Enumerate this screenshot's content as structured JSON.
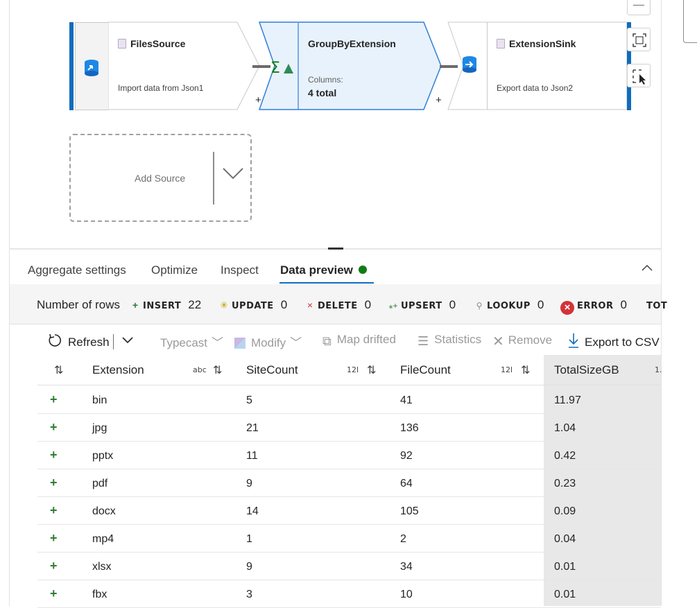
{
  "pipeline": {
    "nodes": [
      {
        "title": "FilesSource",
        "subtitle": "Import data from Json1"
      },
      {
        "title": "GroupByExtension",
        "columns_label": "Columns:",
        "columns_value": "4 total"
      },
      {
        "title": "ExtensionSink",
        "subtitle": "Export data to Json2"
      }
    ],
    "plus": "+",
    "add_source": "Add Source"
  },
  "tabs": [
    {
      "label": "Aggregate settings"
    },
    {
      "label": "Optimize"
    },
    {
      "label": "Inspect"
    },
    {
      "label": "Data preview"
    }
  ],
  "stats": {
    "rows_label": "Number of rows",
    "items": [
      {
        "key": "INSERT",
        "value": "22",
        "color": "#2e7d32"
      },
      {
        "key": "UPDATE",
        "value": "0",
        "color": "#c19c00"
      },
      {
        "key": "DELETE",
        "value": "0",
        "color": "#d13438"
      },
      {
        "key": "UPSERT",
        "value": "0",
        "color": "#2e7d32"
      },
      {
        "key": "LOOKUP",
        "value": "0",
        "color": "#707070"
      },
      {
        "key": "ERROR",
        "value": "0",
        "color": "#d13438"
      }
    ],
    "truncated": "TOT"
  },
  "toolbar": {
    "refresh": "Refresh",
    "typecast": "Typecast",
    "modify": "Modify",
    "map_drifted": "Map drifted",
    "statistics": "Statistics",
    "remove": "Remove",
    "export": "Export to CSV"
  },
  "table": {
    "columns": [
      {
        "name": "Extension",
        "type": "abc"
      },
      {
        "name": "SiteCount",
        "type": "12l"
      },
      {
        "name": "FileCount",
        "type": "12l"
      },
      {
        "name": "TotalSizeGB",
        "type": "1."
      }
    ],
    "rows": [
      [
        "bin",
        "5",
        "41",
        "11.97"
      ],
      [
        "jpg",
        "21",
        "136",
        "1.04"
      ],
      [
        "pptx",
        "11",
        "92",
        "0.42"
      ],
      [
        "pdf",
        "9",
        "64",
        "0.23"
      ],
      [
        "docx",
        "14",
        "105",
        "0.09"
      ],
      [
        "mp4",
        "1",
        "2",
        "0.04"
      ],
      [
        "xlsx",
        "9",
        "34",
        "0.01"
      ],
      [
        "fbx",
        "3",
        "10",
        "0.01"
      ]
    ]
  }
}
